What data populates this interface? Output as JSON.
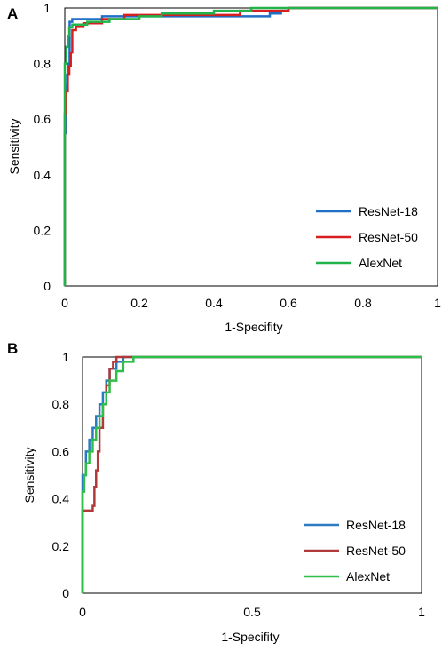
{
  "chart_data": [
    {
      "type": "line",
      "panel": "A",
      "xlabel": "1-Specifity",
      "ylabel": "Sensitivity",
      "xlim": [
        0,
        1
      ],
      "ylim": [
        0,
        1
      ],
      "xticks": [
        "0",
        "0.2",
        "0.4",
        "0.6",
        "0.8",
        "1"
      ],
      "yticks": [
        "0",
        "0.2",
        "0.4",
        "0.6",
        "0.8",
        "1"
      ],
      "grid": false,
      "legend_position": "bottom-right",
      "series": [
        {
          "name": "ResNet-18",
          "color": "#1f6fc5",
          "points": [
            [
              0,
              0
            ],
            [
              0,
              0.55
            ],
            [
              0.003,
              0.55
            ],
            [
              0.003,
              0.72
            ],
            [
              0.006,
              0.72
            ],
            [
              0.006,
              0.76
            ],
            [
              0.01,
              0.76
            ],
            [
              0.01,
              0.8
            ],
            [
              0.013,
              0.8
            ],
            [
              0.013,
              0.95
            ],
            [
              0.02,
              0.95
            ],
            [
              0.02,
              0.96
            ],
            [
              0.1,
              0.96
            ],
            [
              0.1,
              0.97
            ],
            [
              0.55,
              0.97
            ],
            [
              0.55,
              0.98
            ],
            [
              0.58,
              0.98
            ],
            [
              0.58,
              0.99
            ],
            [
              0.6,
              0.99
            ],
            [
              0.6,
              1
            ],
            [
              1,
              1
            ]
          ]
        },
        {
          "name": "ResNet-50",
          "color": "#d61f1f",
          "points": [
            [
              0,
              0
            ],
            [
              0,
              0.62
            ],
            [
              0.004,
              0.62
            ],
            [
              0.004,
              0.7
            ],
            [
              0.008,
              0.7
            ],
            [
              0.008,
              0.76
            ],
            [
              0.012,
              0.76
            ],
            [
              0.012,
              0.79
            ],
            [
              0.016,
              0.79
            ],
            [
              0.016,
              0.84
            ],
            [
              0.02,
              0.84
            ],
            [
              0.02,
              0.92
            ],
            [
              0.03,
              0.92
            ],
            [
              0.03,
              0.935
            ],
            [
              0.05,
              0.935
            ],
            [
              0.05,
              0.945
            ],
            [
              0.1,
              0.945
            ],
            [
              0.1,
              0.96
            ],
            [
              0.16,
              0.96
            ],
            [
              0.16,
              0.975
            ],
            [
              0.47,
              0.975
            ],
            [
              0.47,
              0.99
            ],
            [
              0.6,
              0.99
            ],
            [
              0.6,
              1
            ],
            [
              1,
              1
            ]
          ]
        },
        {
          "name": "AlexNet",
          "color": "#22b34a",
          "points": [
            [
              0,
              0
            ],
            [
              0,
              0.8
            ],
            [
              0.004,
              0.8
            ],
            [
              0.004,
              0.86
            ],
            [
              0.008,
              0.86
            ],
            [
              0.008,
              0.9
            ],
            [
              0.012,
              0.9
            ],
            [
              0.012,
              0.93
            ],
            [
              0.02,
              0.93
            ],
            [
              0.02,
              0.94
            ],
            [
              0.06,
              0.94
            ],
            [
              0.06,
              0.95
            ],
            [
              0.12,
              0.95
            ],
            [
              0.12,
              0.96
            ],
            [
              0.2,
              0.96
            ],
            [
              0.2,
              0.97
            ],
            [
              0.26,
              0.97
            ],
            [
              0.26,
              0.98
            ],
            [
              0.4,
              0.98
            ],
            [
              0.4,
              0.99
            ],
            [
              0.5,
              0.99
            ],
            [
              0.5,
              1
            ],
            [
              1,
              1
            ]
          ]
        }
      ]
    },
    {
      "type": "line",
      "panel": "B",
      "xlabel": "1-Specifity",
      "ylabel": "Sensitivity",
      "xlim": [
        0,
        1
      ],
      "ylim": [
        0,
        1
      ],
      "xticks": [
        "0",
        "0.5",
        "1"
      ],
      "yticks": [
        "0",
        "0.2",
        "0.4",
        "0.6",
        "0.8",
        "1"
      ],
      "grid": false,
      "legend_position": "bottom-right",
      "series": [
        {
          "name": "ResNet-18",
          "color": "#2a7bbf",
          "points": [
            [
              0,
              0
            ],
            [
              0,
              0.5
            ],
            [
              0.01,
              0.5
            ],
            [
              0.01,
              0.6
            ],
            [
              0.02,
              0.6
            ],
            [
              0.02,
              0.65
            ],
            [
              0.03,
              0.65
            ],
            [
              0.03,
              0.7
            ],
            [
              0.04,
              0.7
            ],
            [
              0.04,
              0.75
            ],
            [
              0.05,
              0.75
            ],
            [
              0.05,
              0.8
            ],
            [
              0.06,
              0.8
            ],
            [
              0.06,
              0.85
            ],
            [
              0.07,
              0.85
            ],
            [
              0.07,
              0.9
            ],
            [
              0.08,
              0.9
            ],
            [
              0.08,
              0.95
            ],
            [
              0.1,
              0.95
            ],
            [
              0.1,
              0.98
            ],
            [
              0.12,
              0.98
            ],
            [
              0.12,
              1
            ],
            [
              1,
              1
            ]
          ]
        },
        {
          "name": "ResNet-50",
          "color": "#b03a3a",
          "points": [
            [
              0,
              0
            ],
            [
              0,
              0.35
            ],
            [
              0.03,
              0.35
            ],
            [
              0.03,
              0.37
            ],
            [
              0.035,
              0.37
            ],
            [
              0.035,
              0.45
            ],
            [
              0.04,
              0.45
            ],
            [
              0.04,
              0.52
            ],
            [
              0.045,
              0.52
            ],
            [
              0.045,
              0.6
            ],
            [
              0.05,
              0.6
            ],
            [
              0.05,
              0.7
            ],
            [
              0.06,
              0.7
            ],
            [
              0.06,
              0.8
            ],
            [
              0.07,
              0.8
            ],
            [
              0.07,
              0.88
            ],
            [
              0.08,
              0.88
            ],
            [
              0.08,
              0.95
            ],
            [
              0.09,
              0.95
            ],
            [
              0.09,
              0.98
            ],
            [
              0.1,
              0.98
            ],
            [
              0.1,
              1
            ],
            [
              1,
              1
            ]
          ]
        },
        {
          "name": "AlexNet",
          "color": "#2ebf4a",
          "points": [
            [
              0,
              0
            ],
            [
              0,
              0.43
            ],
            [
              0.005,
              0.43
            ],
            [
              0.005,
              0.5
            ],
            [
              0.01,
              0.5
            ],
            [
              0.01,
              0.55
            ],
            [
              0.02,
              0.55
            ],
            [
              0.02,
              0.6
            ],
            [
              0.03,
              0.6
            ],
            [
              0.03,
              0.65
            ],
            [
              0.04,
              0.65
            ],
            [
              0.04,
              0.7
            ],
            [
              0.05,
              0.7
            ],
            [
              0.05,
              0.75
            ],
            [
              0.06,
              0.75
            ],
            [
              0.06,
              0.8
            ],
            [
              0.07,
              0.8
            ],
            [
              0.07,
              0.85
            ],
            [
              0.08,
              0.85
            ],
            [
              0.08,
              0.9
            ],
            [
              0.1,
              0.9
            ],
            [
              0.1,
              0.94
            ],
            [
              0.12,
              0.94
            ],
            [
              0.12,
              0.98
            ],
            [
              0.15,
              0.98
            ],
            [
              0.15,
              1
            ],
            [
              1,
              1
            ]
          ]
        }
      ]
    }
  ]
}
